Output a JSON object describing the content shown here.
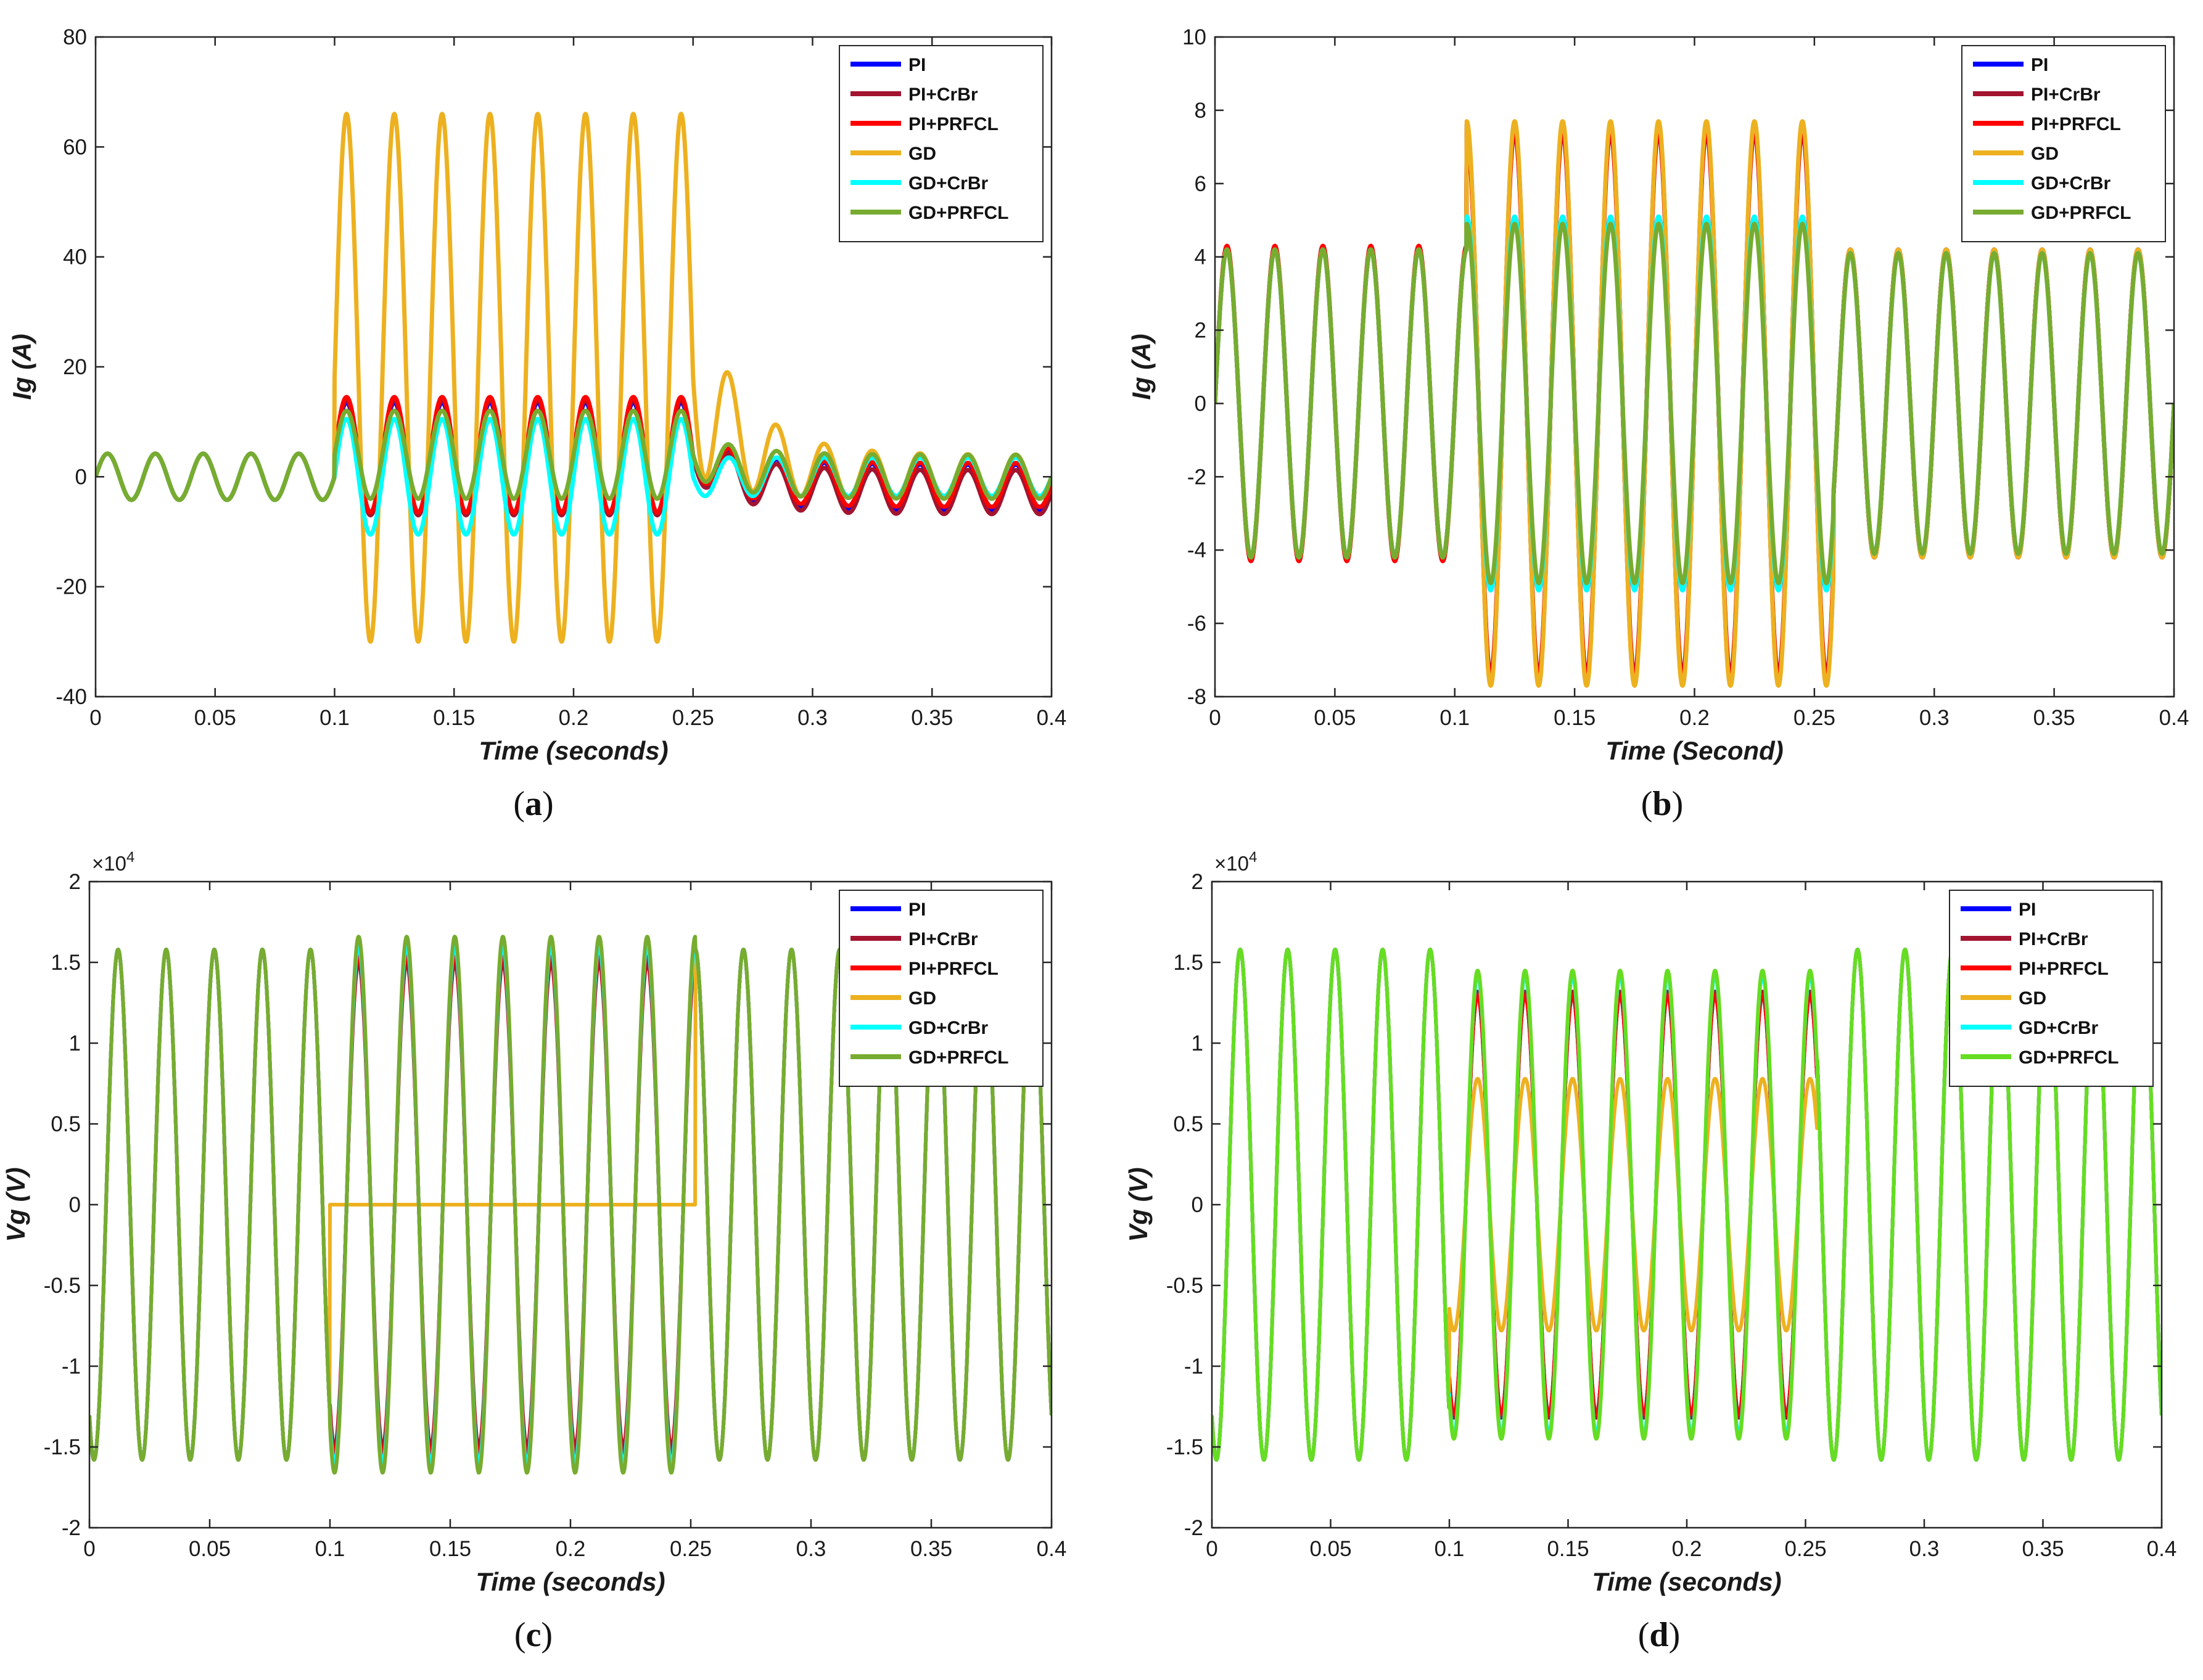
{
  "chart_data": [
    {
      "id": "a",
      "type": "line",
      "caption_letter": "a",
      "ylabel": "Ig (A)",
      "xlabel": "Time (seconds)",
      "xlim": [
        0,
        0.4
      ],
      "ylim": [
        -40,
        80
      ],
      "xticks": [
        0,
        0.05,
        0.1,
        0.15,
        0.2,
        0.25,
        0.3,
        0.35,
        0.4
      ],
      "xtick_labels": [
        "0",
        "0.05",
        "0.1",
        "0.15",
        "0.2",
        "0.25",
        "0.3",
        "0.35",
        "0.4"
      ],
      "yticks": [
        -40,
        -20,
        0,
        20,
        40,
        60,
        80
      ],
      "ytick_labels": [
        "-40",
        "-20",
        "0",
        "20",
        "40",
        "60",
        "80"
      ],
      "exponent": null,
      "legend_position": "top-right",
      "fault_interval": [
        0.1,
        0.25
      ],
      "series": [
        {
          "name": "PI",
          "color": "#0000ff",
          "pre_amp": 4.2,
          "fault_amp": 10,
          "fault_offset": 3.5,
          "post_amp": 4.2,
          "post_offset": -2
        },
        {
          "name": "PI+CrBr",
          "color": "#a2142f",
          "pre_amp": 4.2,
          "fault_amp": 10.5,
          "fault_offset": 3.5,
          "post_amp": 4,
          "post_offset": -2.8
        },
        {
          "name": "PI+PRFCL",
          "color": "#ff0000",
          "pre_amp": 4.2,
          "fault_amp": 10.5,
          "fault_offset": 4,
          "post_amp": 4,
          "post_offset": -1.5
        },
        {
          "name": "GD",
          "color": "#edb120",
          "pre_amp": 4.2,
          "fault_amp": 48,
          "fault_offset": 18,
          "post_amp": 4,
          "post_offset": 0
        },
        {
          "name": "GD+CrBr",
          "color": "#00ffff",
          "pre_amp": 4.2,
          "fault_amp": 10.5,
          "fault_offset": 0,
          "post_amp": 3.5,
          "post_offset": 0
        },
        {
          "name": "GD+PRFCL",
          "color": "#77ac30",
          "pre_amp": 4.2,
          "fault_amp": 8,
          "fault_offset": 4,
          "post_amp": 4,
          "post_offset": 0
        }
      ]
    },
    {
      "id": "b",
      "type": "line",
      "caption_letter": "b",
      "ylabel": "Ig (A)",
      "xlabel": "Time (Second)",
      "xlim": [
        0,
        0.4
      ],
      "ylim": [
        -8,
        10
      ],
      "xticks": [
        0,
        0.05,
        0.1,
        0.15,
        0.2,
        0.25,
        0.3,
        0.35,
        0.4
      ],
      "xtick_labels": [
        "0",
        "0.05",
        "0.1",
        "0.15",
        "0.2",
        "0.25",
        "0.3",
        "0.35",
        "0.4"
      ],
      "yticks": [
        -8,
        -6,
        -4,
        -2,
        0,
        2,
        4,
        6,
        8,
        10
      ],
      "ytick_labels": [
        "-8",
        "-6",
        "-4",
        "-2",
        "0",
        "2",
        "4",
        "6",
        "8",
        "10"
      ],
      "exponent": null,
      "legend_position": "top-right",
      "fault_interval": [
        0.105,
        0.258
      ],
      "series": [
        {
          "name": "PI",
          "color": "#0000ff",
          "pre_amp": 4.2,
          "fault_amp": 7.6,
          "fault_offset": 0,
          "post_amp": 4.2,
          "post_offset": 0
        },
        {
          "name": "PI+CrBr",
          "color": "#a2142f",
          "pre_amp": 4.2,
          "fault_amp": 7.4,
          "fault_offset": 0,
          "post_amp": 4.2,
          "post_offset": 0
        },
        {
          "name": "PI+PRFCL",
          "color": "#ff0000",
          "pre_amp": 4.3,
          "fault_amp": 7.5,
          "fault_offset": 0,
          "post_amp": 4.2,
          "post_offset": 0
        },
        {
          "name": "GD",
          "color": "#edb120",
          "pre_amp": 4.2,
          "fault_amp": 7.7,
          "fault_offset": 0,
          "post_amp": 4.2,
          "post_offset": 0
        },
        {
          "name": "GD+CrBr",
          "color": "#00ffff",
          "pre_amp": 4.2,
          "fault_amp": 5.1,
          "fault_offset": 0,
          "post_amp": 4.1,
          "post_offset": 0
        },
        {
          "name": "GD+PRFCL",
          "color": "#77ac30",
          "pre_amp": 4.2,
          "fault_amp": 4.9,
          "fault_offset": 0,
          "post_amp": 4.1,
          "post_offset": 0
        }
      ]
    },
    {
      "id": "c",
      "type": "line",
      "caption_letter": "c",
      "ylabel": "Vg (V)",
      "xlabel": "Time (seconds)",
      "xlim": [
        0,
        0.4
      ],
      "ylim": [
        -2,
        2
      ],
      "xticks": [
        0,
        0.05,
        0.1,
        0.15,
        0.2,
        0.25,
        0.3,
        0.35,
        0.4
      ],
      "xtick_labels": [
        "0",
        "0.05",
        "0.1",
        "0.15",
        "0.2",
        "0.25",
        "0.3",
        "0.35",
        "0.4"
      ],
      "yticks": [
        -2,
        -1.5,
        -1,
        -0.5,
        0,
        0.5,
        1,
        1.5,
        2
      ],
      "ytick_labels": [
        "-2",
        "-1.5",
        "-1",
        "-0.5",
        "0",
        "0.5",
        "1",
        "1.5",
        "2"
      ],
      "exponent": {
        "base": "×10",
        "power": "4"
      },
      "legend_position": "top-right",
      "fault_interval": [
        0.1,
        0.252
      ],
      "series": [
        {
          "name": "PI",
          "color": "#0000ff",
          "pre_amp": 1.58,
          "fault_amp": 1.55,
          "fault_offset": 0,
          "post_amp": 1.58,
          "post_offset": 0
        },
        {
          "name": "PI+CrBr",
          "color": "#a2142f",
          "pre_amp": 1.58,
          "fault_amp": 1.5,
          "fault_offset": 0,
          "post_amp": 1.58,
          "post_offset": 0
        },
        {
          "name": "PI+PRFCL",
          "color": "#ff0000",
          "pre_amp": 1.58,
          "fault_amp": 1.55,
          "fault_offset": 0,
          "post_amp": 1.58,
          "post_offset": 0
        },
        {
          "name": "GD",
          "color": "#edb120",
          "pre_amp": 1.58,
          "fault_amp": 0,
          "fault_offset": 0,
          "post_amp": 1.58,
          "post_offset": 0
        },
        {
          "name": "GD+CrBr",
          "color": "#00ffff",
          "pre_amp": 1.58,
          "fault_amp": 1.6,
          "fault_offset": 0,
          "post_amp": 1.58,
          "post_offset": 0
        },
        {
          "name": "GD+PRFCL",
          "color": "#77ac30",
          "pre_amp": 1.58,
          "fault_amp": 1.66,
          "fault_offset": 0,
          "post_amp": 1.58,
          "post_offset": 0
        }
      ]
    },
    {
      "id": "d",
      "type": "line",
      "caption_letter": "d",
      "ylabel": "Vg (V)",
      "xlabel": "Time (seconds)",
      "xlim": [
        0,
        0.4
      ],
      "ylim": [
        -2,
        2
      ],
      "xticks": [
        0,
        0.05,
        0.1,
        0.15,
        0.2,
        0.25,
        0.3,
        0.35,
        0.4
      ],
      "xtick_labels": [
        "0",
        "0.05",
        "0.1",
        "0.15",
        "0.2",
        "0.25",
        "0.3",
        "0.35",
        "0.4"
      ],
      "yticks": [
        -2,
        -1.5,
        -1,
        -0.5,
        0,
        0.5,
        1,
        1.5,
        2
      ],
      "ytick_labels": [
        "-2",
        "-1.5",
        "-1",
        "-0.5",
        "0",
        "0.5",
        "1",
        "1.5",
        "2"
      ],
      "exponent": {
        "base": "×10",
        "power": "4"
      },
      "legend_position": "top-right",
      "fault_interval": [
        0.1,
        0.255
      ],
      "series": [
        {
          "name": "PI",
          "color": "#0000ff",
          "pre_amp": 1.58,
          "fault_amp": 1.3,
          "fault_offset": 0,
          "post_amp": 1.58,
          "post_offset": 0
        },
        {
          "name": "PI+CrBr",
          "color": "#a2142f",
          "pre_amp": 1.58,
          "fault_amp": 1.32,
          "fault_offset": 0,
          "post_amp": 1.58,
          "post_offset": 0
        },
        {
          "name": "PI+PRFCL",
          "color": "#ff0000",
          "pre_amp": 1.58,
          "fault_amp": 1.3,
          "fault_offset": 0,
          "post_amp": 1.58,
          "post_offset": 0
        },
        {
          "name": "GD",
          "color": "#edb120",
          "pre_amp": 1.58,
          "fault_amp": 0.78,
          "fault_offset": 0,
          "post_amp": 1.58,
          "post_offset": 0
        },
        {
          "name": "GD+CrBr",
          "color": "#00ffff",
          "pre_amp": 1.58,
          "fault_amp": 1.42,
          "fault_offset": 0,
          "post_amp": 1.58,
          "post_offset": 0
        },
        {
          "name": "GD+PRFCL",
          "color": "#66dd22",
          "pre_amp": 1.58,
          "fault_amp": 1.45,
          "fault_offset": 0,
          "post_amp": 1.58,
          "post_offset": 0
        }
      ]
    }
  ]
}
